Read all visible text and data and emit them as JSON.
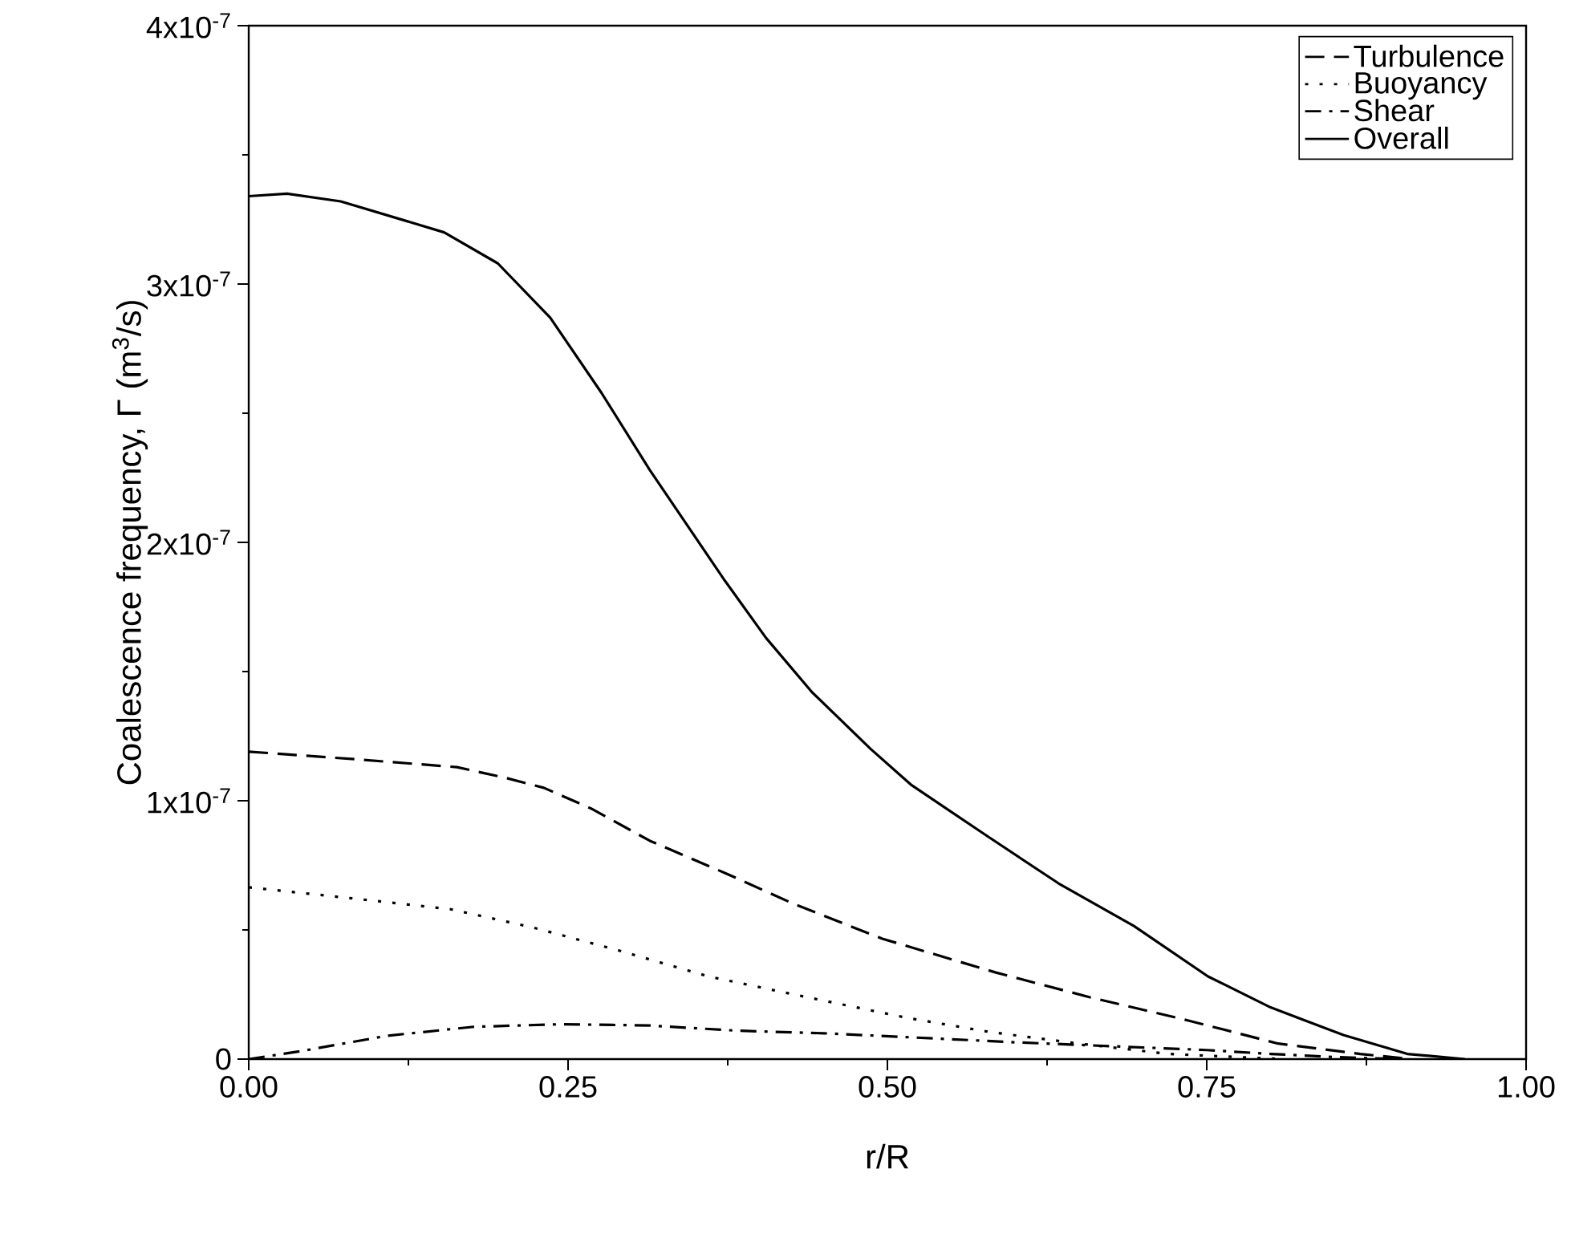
{
  "chart_data": {
    "type": "line",
    "xlabel": "r/R",
    "ylabel": "Coalescence frequency, Γ (m$^{3}$/s)",
    "xlim": [
      0,
      1
    ],
    "ylim": [
      0,
      4e-07
    ],
    "xticks": [
      {
        "value": 0,
        "label": "0.00"
      },
      {
        "value": 0.25,
        "label": "0.25"
      },
      {
        "value": 0.5,
        "label": "0.50"
      },
      {
        "value": 0.75,
        "label": "0.75"
      },
      {
        "value": 1,
        "label": "1.00"
      }
    ],
    "yticks": [
      0,
      {
        "value": 1e-07,
        "label": "1x10$^{-7}$"
      },
      {
        "value": 2e-07,
        "label": "2x10$^{-7}$"
      },
      {
        "value": 3e-07,
        "label": "3x10$^{-7}$"
      },
      {
        "value": 4e-07,
        "label": "4x10$^{-7}$"
      }
    ],
    "legend": "top right",
    "grid": false,
    "marker": "none",
    "series": [
      {
        "name": "Turbulence",
        "color": "#000000",
        "line_style": "dashed",
        "x": [
          0,
          0.085,
          0.163,
          0.2,
          0.231,
          0.268,
          0.314,
          0.373,
          0.427,
          0.496,
          0.585,
          0.658,
          0.735,
          0.806,
          0.87,
          0.91
        ],
        "values": [
          1.19e-07,
          1.16e-07,
          1.13e-07,
          1.09e-07,
          1.05e-07,
          9.7e-08,
          8.45e-08,
          7.2e-08,
          6e-08,
          4.66e-08,
          3.35e-08,
          2.4e-08,
          1.5e-08,
          6e-09,
          2e-09,
          0
        ]
      },
      {
        "name": "Buoyancy",
        "color": "#000000",
        "line_style": "dotted",
        "x": [
          0,
          0.085,
          0.158,
          0.222,
          0.29,
          0.36,
          0.427,
          0.515,
          0.58,
          0.65,
          0.72,
          0.81
        ],
        "values": [
          6.65e-08,
          6.2e-08,
          5.8e-08,
          5.1e-08,
          4.2e-08,
          3.2e-08,
          2.5e-08,
          1.6e-08,
          1.05e-08,
          6e-09,
          2e-09,
          0
        ]
      },
      {
        "name": "Shear",
        "color": "#000000",
        "line_style": "dashdot",
        "x": [
          0,
          0.04,
          0.108,
          0.176,
          0.245,
          0.314,
          0.382,
          0.45,
          0.515,
          0.6,
          0.7,
          0.75,
          0.8,
          0.85,
          0.9
        ],
        "values": [
          0,
          3e-09,
          9e-09,
          1.25e-08,
          1.35e-08,
          1.3e-08,
          1.1e-08,
          1e-08,
          8.5e-09,
          6.5e-09,
          4.5e-09,
          3.5e-09,
          2e-09,
          8e-10,
          0
        ]
      },
      {
        "name": "Overall",
        "color": "#000000",
        "line_style": "solid",
        "x": [
          0,
          0.03,
          0.072,
          0.153,
          0.195,
          0.236,
          0.276,
          0.314,
          0.373,
          0.405,
          0.441,
          0.487,
          0.519,
          0.58,
          0.634,
          0.693,
          0.751,
          0.8,
          0.857,
          0.907,
          0.952
        ],
        "values": [
          3.34e-07,
          3.35e-07,
          3.32e-07,
          3.2e-07,
          3.08e-07,
          2.87e-07,
          2.58e-07,
          2.28e-07,
          1.85e-07,
          1.63e-07,
          1.42e-07,
          1.2e-07,
          1.06e-07,
          8.57e-08,
          6.8e-08,
          5.15e-08,
          3.2e-08,
          2e-08,
          9.3e-09,
          2e-09,
          0
        ]
      }
    ]
  }
}
